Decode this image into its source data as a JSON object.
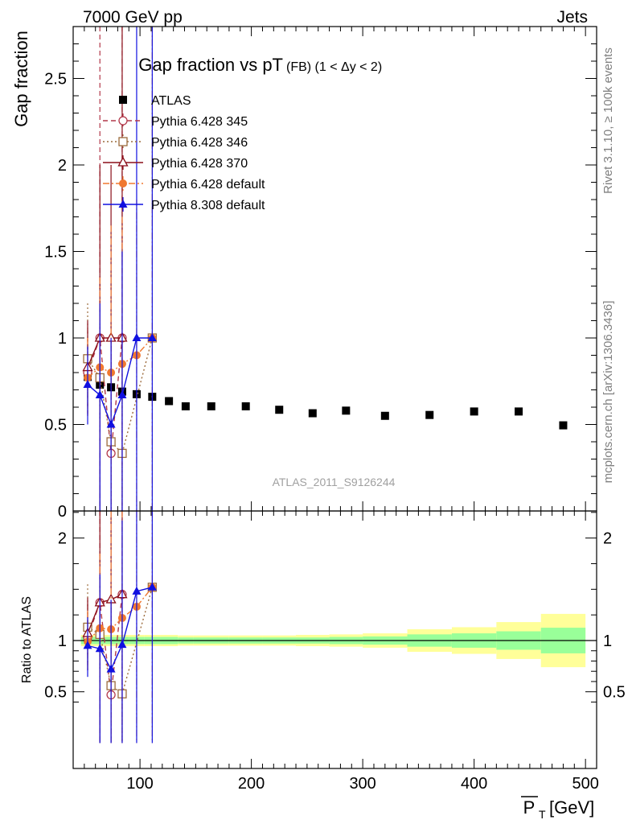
{
  "header": {
    "left": "7000 GeV pp",
    "right": "Jets"
  },
  "side_labels": {
    "rivet": "Rivet 3.1.10, ≥ 100k events",
    "mcplots": "mcplots.cern.ch [arXiv:1306.3436]"
  },
  "analysis_id": "ATLAS_2011_S9126244",
  "chart_data": [
    {
      "panel": "main",
      "type": "scatter",
      "title_main": "Gap fraction vs pT",
      "title_sub": "(FB) (1 < Δy < 2)",
      "ylabel": "Gap fraction",
      "xlim": [
        40,
        510
      ],
      "ylim": [
        0,
        2.8
      ],
      "y_ticks": [
        "0",
        "0.5",
        "1",
        "1.5",
        "2",
        "2.5"
      ],
      "legend_placement": "top-left",
      "series": [
        {
          "name": "ATLAS",
          "color": "#000000",
          "marker": "square-filled",
          "line": "none",
          "points": [
            {
              "x": 53,
              "y": 0.775
            },
            {
              "x": 64,
              "y": 0.73
            },
            {
              "x": 74,
              "y": 0.715
            },
            {
              "x": 84,
              "y": 0.69
            },
            {
              "x": 97,
              "y": 0.675
            },
            {
              "x": 111,
              "y": 0.66
            },
            {
              "x": 126,
              "y": 0.635
            },
            {
              "x": 141,
              "y": 0.605
            },
            {
              "x": 164,
              "y": 0.605
            },
            {
              "x": 195,
              "y": 0.605
            },
            {
              "x": 225,
              "y": 0.585
            },
            {
              "x": 255,
              "y": 0.565
            },
            {
              "x": 285,
              "y": 0.58
            },
            {
              "x": 320,
              "y": 0.55
            },
            {
              "x": 360,
              "y": 0.555
            },
            {
              "x": 400,
              "y": 0.575
            },
            {
              "x": 440,
              "y": 0.575
            },
            {
              "x": 480,
              "y": 0.495
            }
          ]
        },
        {
          "name": "Pythia 6.428 345",
          "color": "#b2384a",
          "marker": "circle-open",
          "line": "dashed",
          "points": [
            {
              "x": 53,
              "y": 0.8,
              "lo": 0.55,
              "hi": 1.05
            },
            {
              "x": 64,
              "y": 1.0,
              "lo": 0.0,
              "hi": 2.8
            },
            {
              "x": 74,
              "y": 0.333,
              "lo": 0.0,
              "hi": 1.0
            },
            {
              "x": 84,
              "y": 1.0,
              "lo": 0.0,
              "hi": 2.8
            }
          ]
        },
        {
          "name": "Pythia 6.428 346",
          "color": "#9c6b3c",
          "marker": "square-open",
          "line": "dotted",
          "points": [
            {
              "x": 53,
              "y": 0.88,
              "lo": 0.6,
              "hi": 1.2
            },
            {
              "x": 64,
              "y": 0.77,
              "lo": 0.45,
              "hi": 1.15
            },
            {
              "x": 74,
              "y": 0.4,
              "lo": 0.0,
              "hi": 1.0
            },
            {
              "x": 84,
              "y": 0.333,
              "lo": 0.0,
              "hi": 1.0
            },
            {
              "x": 111,
              "y": 1.0,
              "lo": 1.0,
              "hi": 1.0
            }
          ]
        },
        {
          "name": "Pythia 6.428 370",
          "color": "#8b0f1a",
          "marker": "triangle-open",
          "line": "solid",
          "points": [
            {
              "x": 53,
              "y": 0.83,
              "lo": 0.55,
              "hi": 1.1
            },
            {
              "x": 64,
              "y": 1.0,
              "lo": 0.0,
              "hi": 2.0
            },
            {
              "x": 74,
              "y": 1.0,
              "lo": 0.0,
              "hi": 2.0
            },
            {
              "x": 84,
              "y": 1.0,
              "lo": 0.0,
              "hi": 2.8
            }
          ]
        },
        {
          "name": "Pythia 6.428 default",
          "color": "#f07830",
          "marker": "circle-filled",
          "line": "dashdot",
          "points": [
            {
              "x": 53,
              "y": 0.77,
              "lo": 0.55,
              "hi": 1.0
            },
            {
              "x": 64,
              "y": 0.83,
              "lo": 0.35,
              "hi": 1.35
            },
            {
              "x": 74,
              "y": 0.8,
              "lo": 0.0,
              "hi": 1.65
            },
            {
              "x": 84,
              "y": 0.85,
              "lo": 0.0,
              "hi": 1.7
            },
            {
              "x": 97,
              "y": 0.9,
              "lo": 0.0,
              "hi": 1.8
            },
            {
              "x": 111,
              "y": 1.0,
              "lo": 0.0,
              "hi": 2.8
            }
          ]
        },
        {
          "name": "Pythia 8.308 default",
          "color": "#1010e0",
          "marker": "triangle-filled",
          "line": "solid",
          "points": [
            {
              "x": 53,
              "y": 0.73,
              "lo": 0.5,
              "hi": 0.95
            },
            {
              "x": 64,
              "y": 0.67,
              "lo": 0.0,
              "hi": 1.2
            },
            {
              "x": 74,
              "y": 0.5,
              "lo": 0.0,
              "hi": 1.0
            },
            {
              "x": 84,
              "y": 0.67,
              "lo": 0.0,
              "hi": 1.5
            },
            {
              "x": 97,
              "y": 1.0,
              "lo": 0.0,
              "hi": 2.8
            },
            {
              "x": 111,
              "y": 1.0,
              "lo": 0.0,
              "hi": 2.8
            }
          ]
        }
      ]
    },
    {
      "panel": "ratio",
      "type": "line",
      "ylabel": "Ratio to ATLAS",
      "xlabel": "P_T [GeV]",
      "xlim": [
        40,
        510
      ],
      "ylim": [
        0.35,
        2.3
      ],
      "y_ticks": [
        "0.5",
        "1",
        "2"
      ],
      "x_ticks": [
        "100",
        "200",
        "300",
        "400",
        "500"
      ],
      "bands": [
        {
          "x0": 47,
          "x1": 58,
          "green": 0.035,
          "yellow": 0.055
        },
        {
          "x0": 58,
          "x1": 69,
          "green": 0.035,
          "yellow": 0.055
        },
        {
          "x0": 69,
          "x1": 79,
          "green": 0.035,
          "yellow": 0.055
        },
        {
          "x0": 79,
          "x1": 90,
          "green": 0.035,
          "yellow": 0.055
        },
        {
          "x0": 90,
          "x1": 104,
          "green": 0.035,
          "yellow": 0.055
        },
        {
          "x0": 104,
          "x1": 118,
          "green": 0.035,
          "yellow": 0.055
        },
        {
          "x0": 118,
          "x1": 134,
          "green": 0.035,
          "yellow": 0.055
        },
        {
          "x0": 134,
          "x1": 148,
          "green": 0.03,
          "yellow": 0.05
        },
        {
          "x0": 148,
          "x1": 180,
          "green": 0.03,
          "yellow": 0.05
        },
        {
          "x0": 180,
          "x1": 210,
          "green": 0.03,
          "yellow": 0.05
        },
        {
          "x0": 210,
          "x1": 240,
          "green": 0.03,
          "yellow": 0.05
        },
        {
          "x0": 240,
          "x1": 270,
          "green": 0.03,
          "yellow": 0.055
        },
        {
          "x0": 270,
          "x1": 300,
          "green": 0.035,
          "yellow": 0.06
        },
        {
          "x0": 300,
          "x1": 340,
          "green": 0.04,
          "yellow": 0.07
        },
        {
          "x0": 340,
          "x1": 380,
          "green": 0.06,
          "yellow": 0.11
        },
        {
          "x0": 380,
          "x1": 420,
          "green": 0.07,
          "yellow": 0.13
        },
        {
          "x0": 420,
          "x1": 460,
          "green": 0.09,
          "yellow": 0.18
        },
        {
          "x0": 460,
          "x1": 500,
          "green": 0.125,
          "yellow": 0.26
        }
      ],
      "series": [
        {
          "name": "Pythia 6.428 345",
          "points": [
            {
              "x": 53,
              "y": 1.03
            },
            {
              "x": 64,
              "y": 1.37
            },
            {
              "x": 74,
              "y": 0.47
            },
            {
              "x": 84,
              "y": 1.45
            }
          ]
        },
        {
          "name": "Pythia 6.428 346",
          "points": [
            {
              "x": 53,
              "y": 1.13
            },
            {
              "x": 64,
              "y": 1.06
            },
            {
              "x": 74,
              "y": 0.56
            },
            {
              "x": 84,
              "y": 0.48
            },
            {
              "x": 111,
              "y": 1.52
            }
          ]
        },
        {
          "name": "Pythia 6.428 370",
          "points": [
            {
              "x": 53,
              "y": 1.07
            },
            {
              "x": 64,
              "y": 1.37
            },
            {
              "x": 74,
              "y": 1.4
            },
            {
              "x": 84,
              "y": 1.45
            }
          ]
        },
        {
          "name": "Pythia 6.428 default",
          "points": [
            {
              "x": 53,
              "y": 0.99
            },
            {
              "x": 64,
              "y": 1.12
            },
            {
              "x": 74,
              "y": 1.11
            },
            {
              "x": 84,
              "y": 1.22
            },
            {
              "x": 97,
              "y": 1.33
            },
            {
              "x": 111,
              "y": 1.52
            }
          ]
        },
        {
          "name": "Pythia 8.308 default",
          "points": [
            {
              "x": 53,
              "y": 0.95
            },
            {
              "x": 64,
              "y": 0.92
            },
            {
              "x": 74,
              "y": 0.72
            },
            {
              "x": 84,
              "y": 0.96
            },
            {
              "x": 97,
              "y": 1.48
            },
            {
              "x": 111,
              "y": 1.52
            }
          ]
        }
      ]
    }
  ]
}
